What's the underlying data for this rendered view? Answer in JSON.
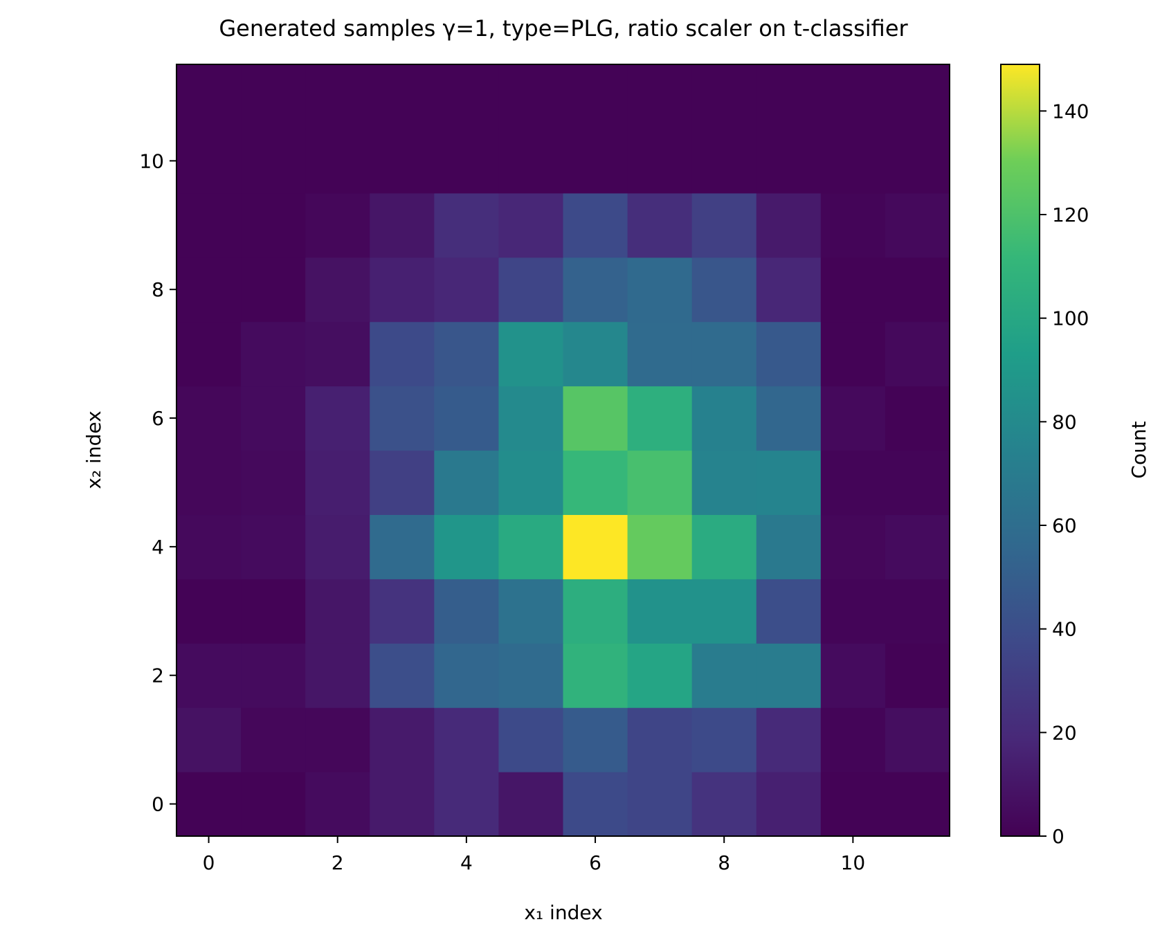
{
  "chart_data": {
    "type": "heatmap",
    "title": "Generated samples γ=1, type=PLG, ratio scaler on t-classifier",
    "xlabel": "x₁ index",
    "ylabel": "x₂ index",
    "x_range": [
      -0.5,
      11.5
    ],
    "y_range": [
      -0.5,
      11.5
    ],
    "x_ticks": [
      0,
      2,
      4,
      6,
      8,
      10
    ],
    "y_ticks": [
      0,
      2,
      4,
      6,
      8,
      10
    ],
    "colormap": "viridis",
    "colorbar": {
      "label": "Count",
      "range": [
        0,
        149
      ],
      "ticks": [
        0,
        20,
        40,
        60,
        80,
        100,
        120,
        140
      ]
    },
    "rows_note": "values[row] is x₂ index = row, entries ordered by x₁ index 0..11",
    "values": [
      [
        1,
        1,
        5,
        12,
        20,
        10,
        38,
        35,
        25,
        15,
        1,
        1
      ],
      [
        8,
        3,
        3,
        12,
        20,
        38,
        48,
        35,
        38,
        20,
        2,
        6
      ],
      [
        5,
        5,
        10,
        40,
        55,
        58,
        108,
        98,
        70,
        70,
        5,
        1
      ],
      [
        1,
        1,
        10,
        25,
        50,
        63,
        105,
        85,
        85,
        40,
        2,
        2
      ],
      [
        4,
        5,
        13,
        58,
        88,
        102,
        149,
        127,
        103,
        68,
        3,
        5
      ],
      [
        3,
        4,
        14,
        32,
        68,
        82,
        112,
        118,
        75,
        76,
        2,
        2
      ],
      [
        3,
        5,
        15,
        42,
        48,
        80,
        123,
        106,
        74,
        55,
        4,
        1
      ],
      [
        1,
        5,
        6,
        38,
        45,
        85,
        78,
        58,
        58,
        47,
        1,
        4
      ],
      [
        1,
        1,
        8,
        15,
        18,
        35,
        52,
        57,
        45,
        18,
        1,
        1
      ],
      [
        1,
        1,
        3,
        10,
        22,
        18,
        38,
        22,
        32,
        12,
        2,
        4
      ],
      [
        1,
        1,
        1,
        1,
        1,
        1,
        1,
        1,
        1,
        1,
        1,
        1
      ],
      [
        1,
        1,
        1,
        1,
        1,
        1,
        1,
        1,
        1,
        1,
        1,
        1
      ]
    ]
  }
}
